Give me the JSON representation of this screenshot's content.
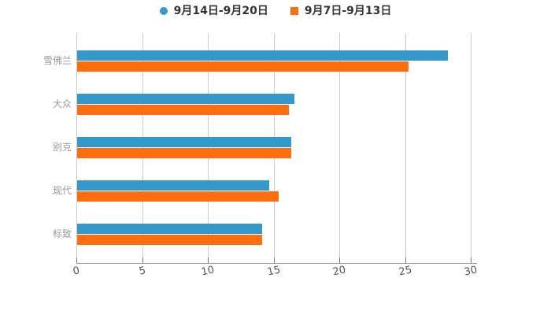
{
  "chart_data": {
    "type": "bar",
    "orientation": "horizontal",
    "title": "",
    "xlabel": "",
    "ylabel": "",
    "categories": [
      "雪佛兰",
      "大众",
      "别克",
      "现代",
      "标致"
    ],
    "series": [
      {
        "name": "9月14日-9月20日",
        "marker": "circle",
        "color": "#3498cb",
        "values": [
          28.2,
          16.5,
          16.3,
          14.6,
          14.1
        ]
      },
      {
        "name": "9月7日-9月13日",
        "marker": "square",
        "color": "#ff6e0c",
        "values": [
          25.2,
          16.1,
          16.3,
          15.3,
          14.1
        ]
      }
    ],
    "xlim": [
      0,
      30
    ],
    "xticks": [
      0,
      5,
      10,
      15,
      20,
      25,
      30
    ],
    "grid": true,
    "legend_position": "top-center"
  },
  "colors": {
    "background": "#ffffff",
    "gridline": "#cccccc",
    "axis_line": "#999999",
    "tick_mark": "#777777",
    "tick_label": "#555555",
    "category_label": "#999999",
    "legend_text": "#333333"
  }
}
